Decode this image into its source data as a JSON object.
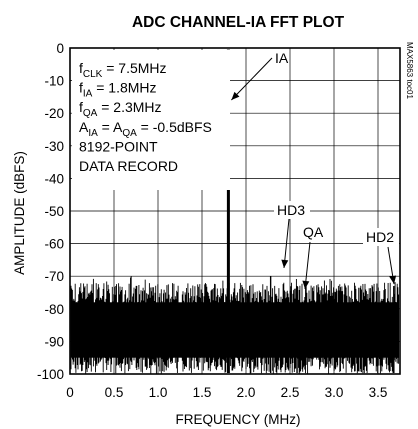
{
  "chart_data": {
    "type": "line",
    "title": "ADC CHANNEL-IA FFT PLOT",
    "xlabel": "FREQUENCY (MHz)",
    "ylabel": "AMPLITUDE (dBFS)",
    "xlim": [
      0,
      3.75
    ],
    "ylim": [
      -100,
      0
    ],
    "x_ticks": [
      "0",
      "0.5",
      "1.0",
      "1.5",
      "2.0",
      "2.5",
      "3.0",
      "3.5"
    ],
    "y_ticks": [
      "0",
      "-10",
      "-20",
      "-30",
      "-40",
      "-50",
      "-60",
      "-70",
      "-80",
      "-90",
      "-100"
    ],
    "grid": true,
    "noise_floor": {
      "min": -100,
      "typical_top": -75,
      "max": -70
    },
    "peaks": [
      {
        "label": "IA",
        "x": 1.8,
        "y": -0.5
      },
      {
        "label": "HD3",
        "x": 2.28,
        "y": -70
      },
      {
        "label": "QA",
        "x": 2.58,
        "y": -73
      },
      {
        "label": "HD2",
        "x": 3.68,
        "y": -73
      }
    ],
    "conditions": [
      {
        "sym": "f",
        "sub": "CLK",
        "rest": " = 7.5MHz"
      },
      {
        "sym": "f",
        "sub": "IA",
        "rest": " = 1.8MHz"
      },
      {
        "sym": "f",
        "sub": "QA",
        "rest": " = 2.3MHz"
      },
      {
        "sym": "A",
        "sub": "IA",
        "mid": " = A",
        "sub2": "QA",
        "rest": " = -0.5dBFS"
      },
      {
        "sym": "",
        "sub": "",
        "rest": "8192-POINT"
      },
      {
        "sym": "",
        "sub": "",
        "rest": "DATA RECORD"
      }
    ],
    "side_label": "MAX5863 toc01"
  }
}
